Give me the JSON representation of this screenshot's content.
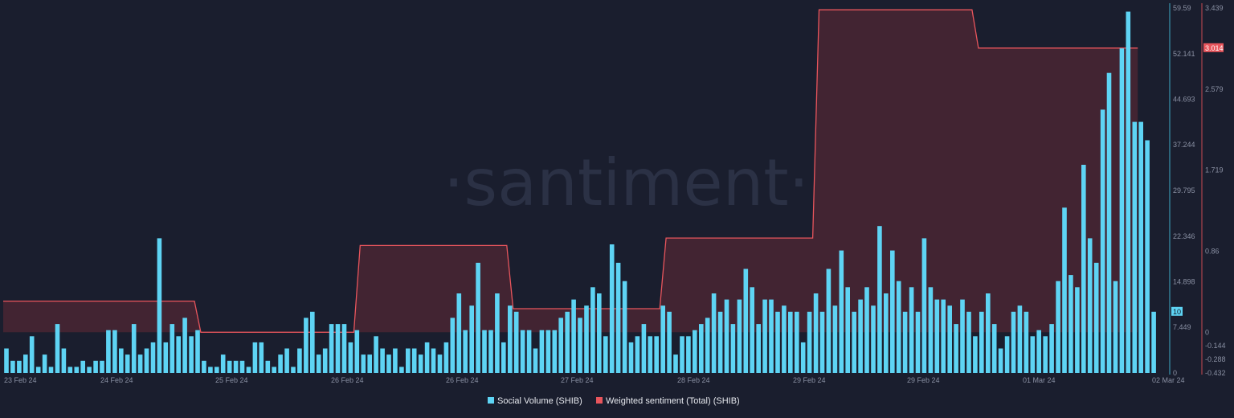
{
  "watermark": "·santiment·",
  "chart_data": {
    "type": "bar",
    "x_ticks": [
      "23 Feb 24",
      "24 Feb 24",
      "25 Feb 24",
      "26 Feb 24",
      "26 Feb 24",
      "27 Feb 24",
      "28 Feb 24",
      "29 Feb 24",
      "29 Feb 24",
      "01 Mar 24",
      "02 Mar 24"
    ],
    "left_axis": {
      "ticks": [
        "59.59",
        "52.141",
        "44.693",
        "37.244",
        "29.795",
        "22.346",
        "14.898",
        "7.449",
        "0"
      ],
      "ylim": [
        0,
        59.59
      ],
      "current_value_label": "10"
    },
    "right_axis": {
      "ticks": [
        "3.439",
        "2.579",
        "1.719",
        "0.86",
        "0",
        "-0.144",
        "-0.288",
        "-0.432"
      ],
      "ylim": [
        -0.432,
        3.439
      ],
      "current_value_label": "3.014"
    },
    "series": [
      {
        "name": "Social Volume (SHIB)",
        "type": "bar",
        "color": "#5ed4f4",
        "values": [
          4,
          2,
          2,
          3,
          6,
          1,
          3,
          1,
          8,
          4,
          1,
          1,
          2,
          1,
          2,
          2,
          7,
          7,
          4,
          3,
          8,
          3,
          4,
          5,
          22,
          5,
          8,
          6,
          9,
          6,
          7,
          2,
          1,
          1,
          3,
          2,
          2,
          2,
          1,
          5,
          5,
          2,
          1,
          3,
          4,
          1,
          4,
          9,
          10,
          3,
          4,
          8,
          8,
          8,
          5,
          7,
          3,
          3,
          6,
          4,
          3,
          4,
          1,
          4,
          4,
          3,
          5,
          4,
          3,
          5,
          9,
          13,
          7,
          11,
          18,
          7,
          7,
          13,
          5,
          11,
          10,
          7,
          7,
          4,
          7,
          7,
          7,
          9,
          10,
          12,
          9,
          11,
          14,
          13,
          6,
          21,
          18,
          15,
          5,
          6,
          8,
          6,
          6,
          11,
          10,
          3,
          6,
          6,
          7,
          8,
          9,
          13,
          10,
          12,
          8,
          12,
          17,
          14,
          8,
          12,
          12,
          10,
          11,
          10,
          10,
          5,
          10,
          13,
          10,
          17,
          11,
          20,
          14,
          10,
          12,
          14,
          11,
          24,
          13,
          20,
          15,
          10,
          14,
          10,
          22,
          14,
          12,
          12,
          11,
          8,
          12,
          10,
          6,
          10,
          13,
          8,
          4,
          6,
          10,
          11,
          10,
          6,
          7,
          6,
          8,
          15,
          27,
          16,
          14,
          34,
          22,
          18,
          43,
          49,
          15,
          53,
          59,
          41,
          41,
          38,
          10
        ],
        "alt_color_values": [
          0,
          0,
          0,
          0,
          0,
          0,
          0,
          0,
          0,
          0,
          0,
          0,
          0,
          0,
          0,
          0,
          0,
          0,
          0,
          0,
          0,
          0,
          0,
          0,
          0,
          0,
          0,
          0,
          0,
          0,
          0,
          0,
          0,
          0,
          0,
          0,
          0,
          0,
          0,
          0,
          0,
          0,
          0,
          0,
          0,
          0,
          0,
          0,
          0,
          0,
          0,
          0,
          0,
          0,
          0,
          0,
          0,
          0,
          0,
          0,
          0,
          0,
          0,
          0,
          0,
          0,
          0,
          0,
          0,
          0,
          0,
          0,
          0,
          0,
          0,
          0,
          0,
          0,
          0,
          0,
          0,
          0,
          0,
          0,
          0,
          0,
          0,
          0,
          0,
          0,
          0,
          0,
          0,
          0,
          0,
          0,
          0,
          0,
          0,
          0,
          0,
          0,
          0,
          0,
          0,
          0,
          0,
          0,
          0,
          0,
          0,
          0,
          0,
          0,
          0,
          0,
          0,
          0,
          0,
          0,
          0,
          0,
          0,
          0,
          0,
          0,
          0,
          0,
          0,
          0,
          0,
          0,
          0,
          0,
          0,
          0,
          0,
          0,
          0,
          0,
          0,
          0,
          0,
          0,
          0,
          0,
          0,
          0,
          0,
          0,
          0,
          0,
          0,
          0,
          0,
          0,
          0,
          0,
          0,
          0,
          0,
          0,
          0,
          0,
          0,
          0,
          0,
          0,
          0,
          0,
          0,
          0,
          0,
          0,
          0,
          0,
          0,
          0,
          0,
          0,
          0,
          0,
          0
        ]
      },
      {
        "name": "Weighted sentiment (Total) (SHIB)",
        "type": "step-area",
        "color": "#e8555c",
        "points": [
          {
            "i": 0,
            "v": 0.33
          },
          {
            "i": 30,
            "v": 0.33
          },
          {
            "i": 31,
            "v": 0.0
          },
          {
            "i": 55,
            "v": 0.0
          },
          {
            "i": 56,
            "v": 0.92
          },
          {
            "i": 79,
            "v": 0.92
          },
          {
            "i": 80,
            "v": 0.25
          },
          {
            "i": 103,
            "v": 0.25
          },
          {
            "i": 104,
            "v": 1.0
          },
          {
            "i": 127,
            "v": 1.0
          },
          {
            "i": 128,
            "v": 3.42
          },
          {
            "i": 152,
            "v": 3.42
          },
          {
            "i": 153,
            "v": 3.014
          },
          {
            "i": 178,
            "v": 3.014
          }
        ]
      }
    ],
    "legend_position": "bottom-center",
    "grid": false
  }
}
